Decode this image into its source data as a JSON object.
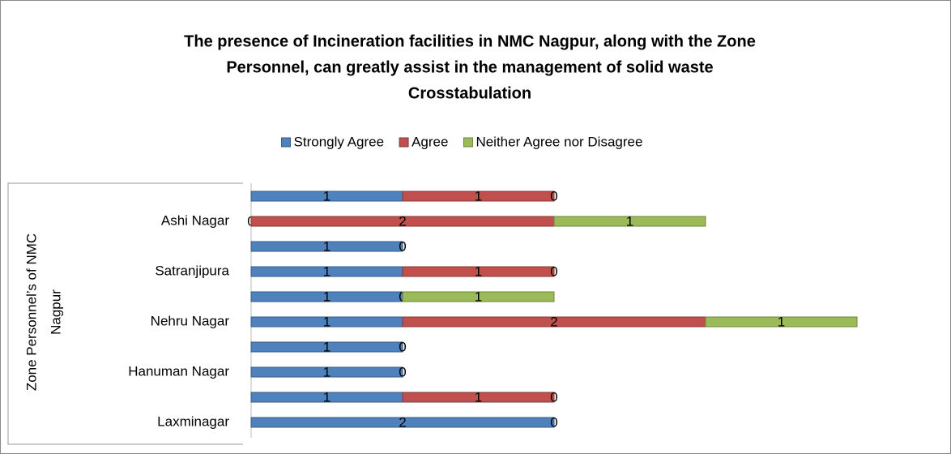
{
  "chart_data": {
    "type": "stacked_bar_horizontal",
    "title": [
      "The presence of Incineration facilities in NMC Nagpur, along with the Zone",
      "Personnel, can greatly assist in the management of solid waste",
      "Crosstabulation"
    ],
    "y_label": [
      "Zone Personnel’s of NMC",
      "Nagpur"
    ],
    "categories": [
      "Laxminagar",
      null,
      "Hanuman Nagar",
      null,
      "Nehru Nagar",
      null,
      "Satranjipura",
      null,
      "Ashi Nagar",
      null
    ],
    "series": [
      {
        "name": "Strongly Agree",
        "color": "#4f81bd",
        "values": [
          2,
          1,
          1,
          1,
          1,
          1,
          1,
          1,
          0,
          1
        ]
      },
      {
        "name": "Agree",
        "color": "#c0504d",
        "values": [
          0,
          1,
          0,
          0,
          2,
          0,
          1,
          0,
          2,
          1
        ]
      },
      {
        "name": "Neither Agree nor Disagree",
        "color": "#9bbb59",
        "values": [
          null,
          0,
          null,
          null,
          1,
          1,
          0,
          null,
          1,
          0
        ]
      }
    ],
    "xlim": [
      0,
      4
    ],
    "legend": "top"
  }
}
